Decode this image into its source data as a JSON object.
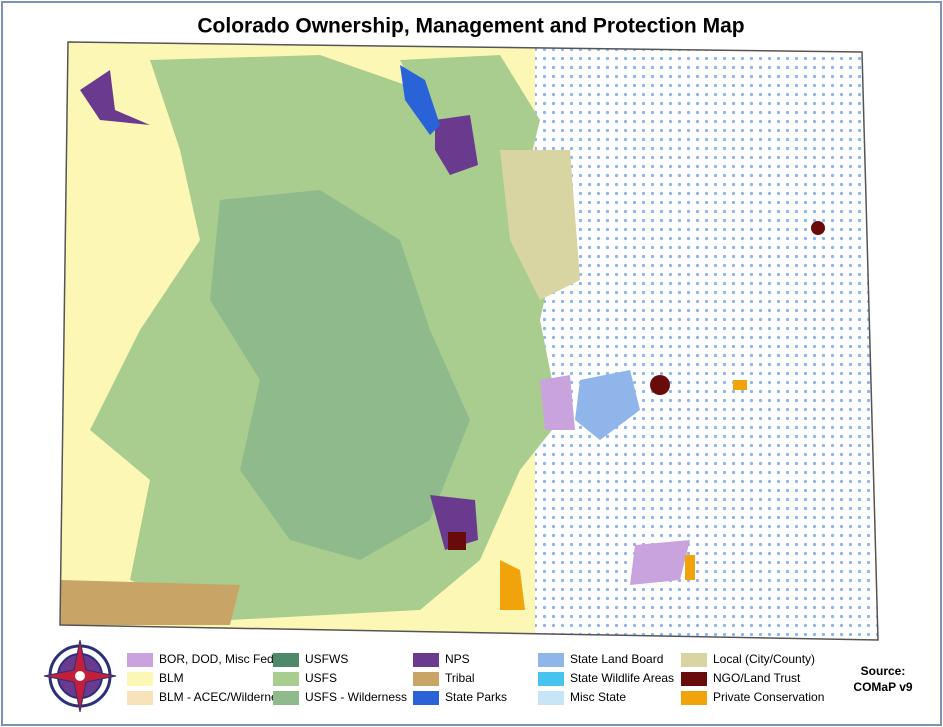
{
  "title": "Colorado Ownership, Management and Protection Map",
  "legend": [
    {
      "label": "BOR, DOD, Misc Federal",
      "color": "#c9a3dd"
    },
    {
      "label": "BLM",
      "color": "#fdf7b6"
    },
    {
      "label": "BLM - ACEC/Wilderness",
      "color": "#f7e2b9"
    },
    {
      "label": "USFWS",
      "color": "#4e8a6a"
    },
    {
      "label": "USFS",
      "color": "#a9cd8e"
    },
    {
      "label": "USFS - Wilderness",
      "color": "#8fba8c"
    },
    {
      "label": "NPS",
      "color": "#6a3a8e"
    },
    {
      "label": "Tribal",
      "color": "#c8a466"
    },
    {
      "label": "State Parks",
      "color": "#2a62d8"
    },
    {
      "label": "State Land Board",
      "color": "#8fb5ea"
    },
    {
      "label": "State Wildlife Areas",
      "color": "#47c3f0"
    },
    {
      "label": "Misc State",
      "color": "#c8e5f7"
    },
    {
      "label": "Local (City/County)",
      "color": "#d8d5a2"
    },
    {
      "label": "NGO/Land Trust",
      "color": "#6a0b0b"
    },
    {
      "label": "Private Conservation",
      "color": "#f0a30b"
    }
  ],
  "source": {
    "heading": "Source:",
    "name": "COMaP v9"
  }
}
